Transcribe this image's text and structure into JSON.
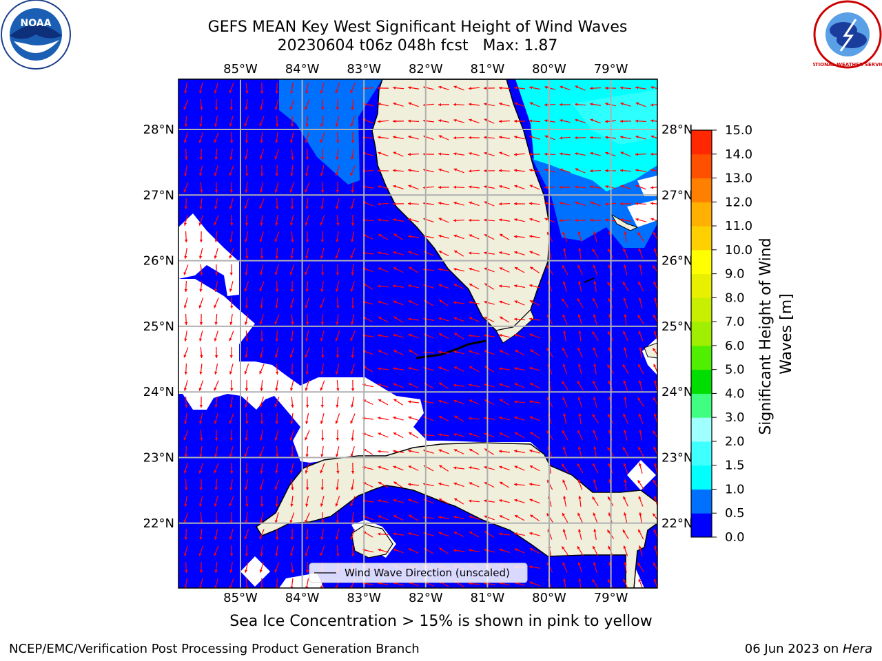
{
  "title": {
    "line1": "GEFS MEAN Key West Significant Height of Wind Waves",
    "line2": "20230604 t06z 048h fcst   Max: 1.87"
  },
  "map": {
    "lon_labels": [
      "85°W",
      "84°W",
      "83°W",
      "82°W",
      "81°W",
      "80°W",
      "79°W"
    ],
    "lat_labels": [
      "28°N",
      "27°N",
      "26°N",
      "25°N",
      "24°N",
      "23°N",
      "22°N"
    ],
    "legend_label": "Wind Wave Direction (unscaled)",
    "colors": {
      "ocean_low": "#0000ff",
      "ocean_mid": "#0070ff",
      "ocean_high": "#00ffff",
      "land": "#efefdc",
      "arrow": "#ff0000",
      "grid": "#b0b0b0"
    }
  },
  "colorbar": {
    "title": "Significant Height of Wind Waves [m]",
    "tick_labels": [
      "0.0",
      "0.5",
      "1.0",
      "1.5",
      "2.0",
      "3.0",
      "4.0",
      "5.0",
      "6.0",
      "7.0",
      "8.0",
      "9.0",
      "10.0",
      "11.0",
      "12.0",
      "13.0",
      "14.0",
      "15.0"
    ],
    "colors": [
      "#0000ff",
      "#0070ff",
      "#00ffff",
      "#40ffff",
      "#a0ffff",
      "#40ff80",
      "#00dd00",
      "#50ee00",
      "#a0ee00",
      "#c8ee00",
      "#e8f000",
      "#ffff00",
      "#ffd000",
      "#ffb000",
      "#ff8000",
      "#ff5000",
      "#ff2800",
      "#ff0000"
    ]
  },
  "notes": {
    "ice": "Sea Ice Concentration > 15% is shown in pink to yellow",
    "footer_left": "NCEP/EMC/Verification Post Processing Product Generation Branch",
    "footer_date": "06 Jun 2023 on ",
    "footer_host": "Hera"
  },
  "logos": {
    "noaa": "NOAA",
    "nws": "NATIONAL WEATHER SERVICE"
  }
}
